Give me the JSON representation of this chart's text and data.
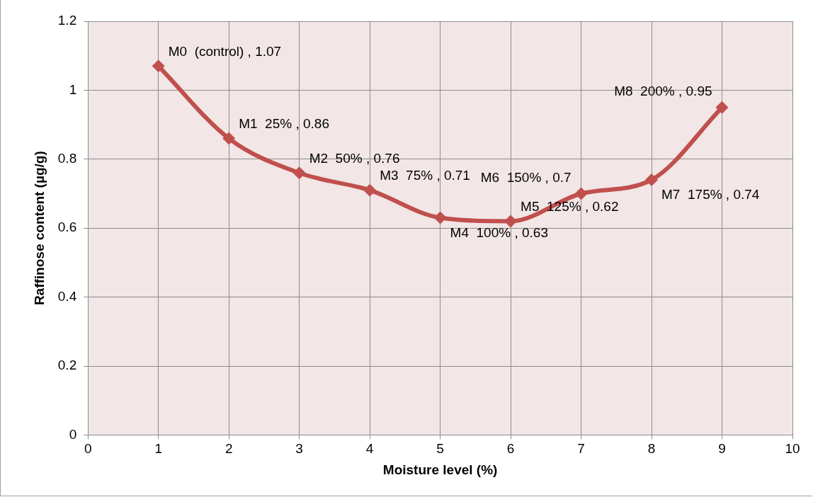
{
  "chart_data": {
    "type": "line",
    "xlabel": "Moisture level (%)",
    "ylabel": "Raffinose content (µg/g)",
    "x": [
      1,
      2,
      3,
      4,
      5,
      6,
      7,
      8,
      9
    ],
    "series": [
      {
        "color": "#c0504d",
        "values": [
          1.07,
          0.86,
          0.76,
          0.71,
          0.63,
          0.62,
          0.7,
          0.74,
          0.95
        ],
        "value_labels": [
          "M0  (control) , 1.07",
          "M1  25% , 0.86",
          "M2  50% , 0.76",
          "M3  75% , 0.71",
          "M4  100% , 0.63",
          "M5  125% , 0.62",
          "M6  150% , 0.7",
          "M7  175% , 0.74",
          "M8  200% , 0.95"
        ]
      }
    ],
    "xlim": [
      0,
      10
    ],
    "xticks": [
      0,
      1,
      2,
      3,
      4,
      5,
      6,
      7,
      8,
      9,
      10
    ],
    "ylim": [
      0,
      1.2
    ],
    "yticks": [
      0,
      0.2,
      0.4,
      0.6,
      0.8,
      1,
      1.2
    ],
    "grid": true,
    "legend": false,
    "marker": "diamond",
    "line_style": "solid"
  }
}
